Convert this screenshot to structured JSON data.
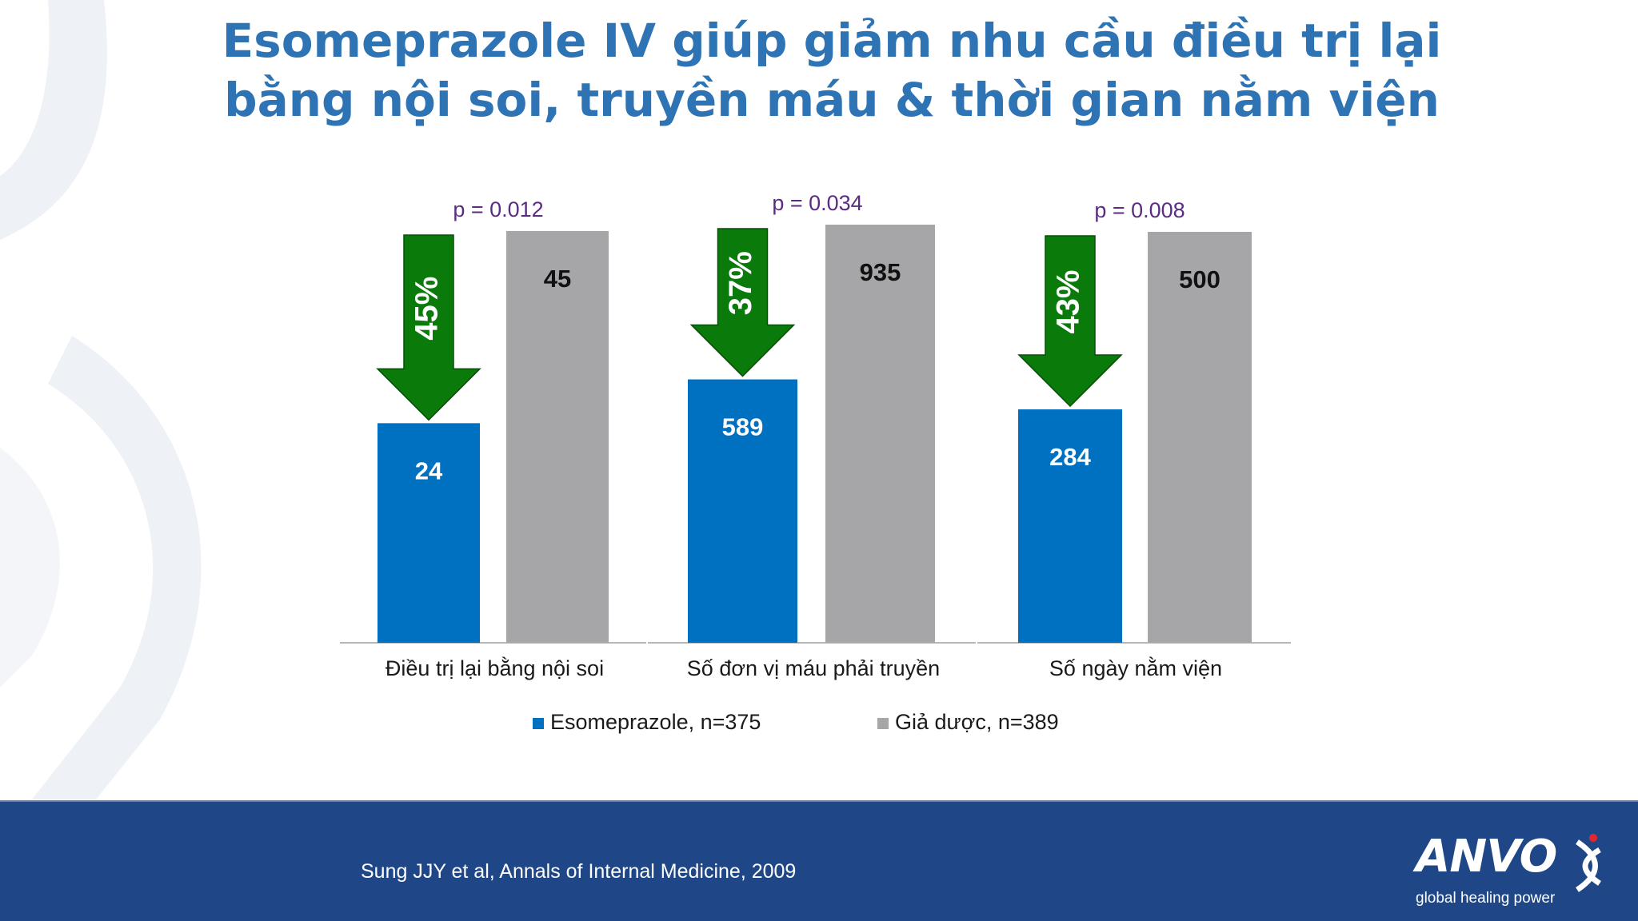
{
  "title": {
    "line1": "Esomeprazole IV giúp giảm nhu cầu điều trị lại",
    "line2": "bằng nội soi, truyền máu & thời gian nằm viện"
  },
  "chart_data": {
    "type": "bar",
    "categories": [
      "Điều trị lại bằng nội soi",
      "Số đơn vị máu phải truyền",
      "Số ngày nằm viện"
    ],
    "series": [
      {
        "name": "Esomeprazole, n=375",
        "values": [
          24,
          589,
          284
        ],
        "color": "#0070C0"
      },
      {
        "name": "Giả dược, n=389",
        "values": [
          45,
          935,
          500
        ],
        "color": "#A6A5A8"
      }
    ],
    "p_values": [
      "p = 0.012",
      "p = 0.034",
      "p = 0.008"
    ],
    "reductions": [
      "45%",
      "37%",
      "43%"
    ],
    "reduction_arrow_color": "#0A7A0A",
    "legend_position": "bottom",
    "grid": false,
    "note": ""
  },
  "footer": {
    "citation": "Sung JJY et al, Annals of Internal Medicine, 2009",
    "logo_text": "ANVO",
    "logo_tagline": "global healing power",
    "background_color": "#1F4788",
    "logo_mark_icon": "dna-helix-icon"
  }
}
